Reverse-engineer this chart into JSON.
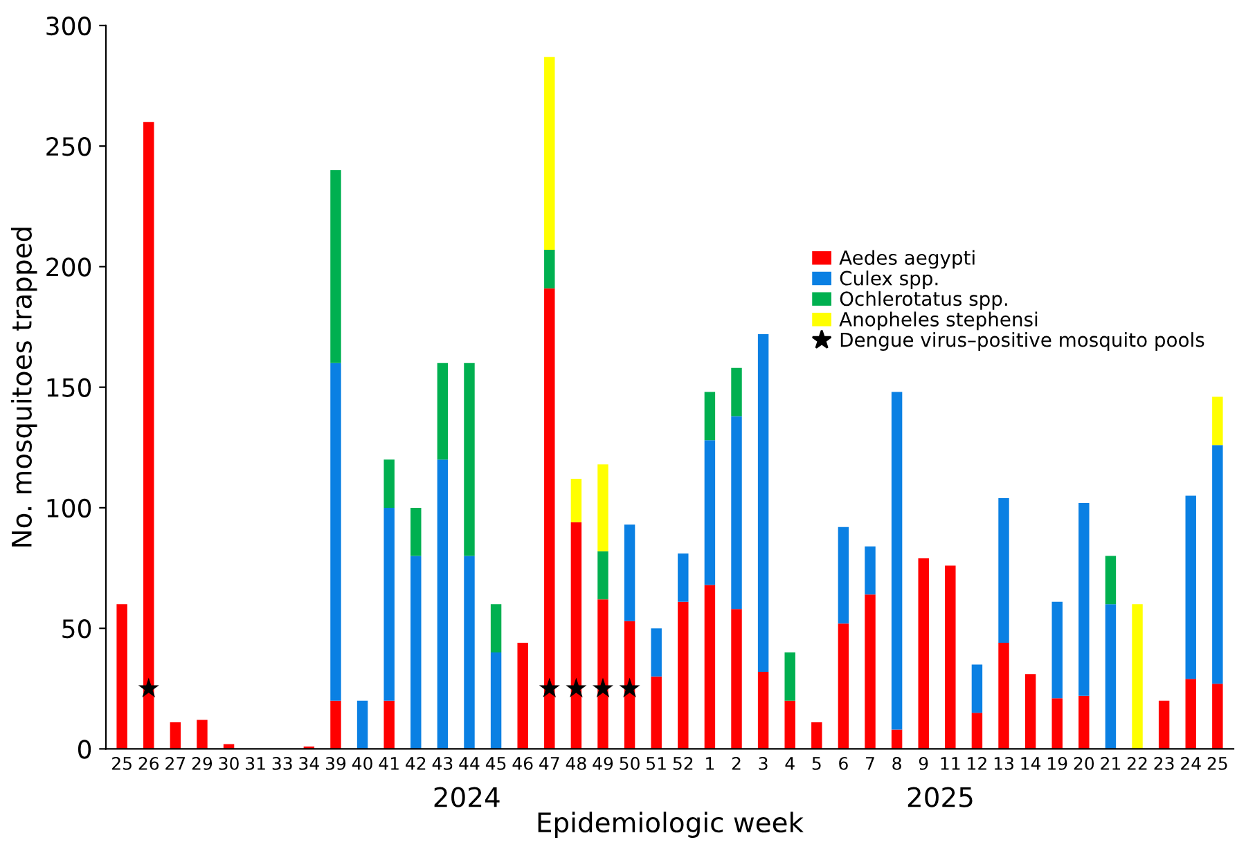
{
  "chart_data": {
    "type": "bar",
    "stacked": true,
    "xlabel": "Epidemiologic week",
    "ylabel": "No. mosquitoes trapped",
    "categories": [
      "25",
      "26",
      "27",
      "29",
      "30",
      "31",
      "33",
      "34",
      "39",
      "40",
      "41",
      "42",
      "43",
      "44",
      "45",
      "46",
      "47",
      "48",
      "49",
      "50",
      "51",
      "52",
      "1",
      "2",
      "3",
      "4",
      "5",
      "6",
      "7",
      "8",
      "9",
      "11",
      "12",
      "13",
      "14",
      "19",
      "20",
      "21",
      "22",
      "23",
      "24",
      "25"
    ],
    "series": [
      {
        "name": "Aedes aegypti",
        "color": "#ff0000",
        "values": [
          60,
          260,
          11,
          12,
          2,
          0,
          0,
          1,
          20,
          0,
          20,
          0,
          0,
          0,
          0,
          44,
          191,
          94,
          62,
          53,
          30,
          61,
          68,
          58,
          32,
          20,
          11,
          52,
          64,
          8,
          79,
          76,
          15,
          44,
          31,
          21,
          22,
          0,
          0,
          20,
          29,
          27
        ]
      },
      {
        "name": "Culex spp.",
        "color": "#0a80e3",
        "values": [
          0,
          0,
          0,
          0,
          0,
          0,
          0,
          0,
          140,
          20,
          80,
          80,
          120,
          80,
          40,
          0,
          0,
          0,
          0,
          40,
          20,
          20,
          60,
          80,
          140,
          0,
          0,
          40,
          20,
          140,
          0,
          0,
          20,
          60,
          0,
          40,
          80,
          60,
          0,
          0,
          76,
          99
        ]
      },
      {
        "name": "Ochlerotatus spp.",
        "color": "#00b050",
        "values": [
          0,
          0,
          0,
          0,
          0,
          0,
          0,
          0,
          80,
          0,
          20,
          20,
          40,
          80,
          20,
          0,
          16,
          0,
          20,
          0,
          0,
          0,
          20,
          20,
          0,
          20,
          0,
          0,
          0,
          0,
          0,
          0,
          0,
          0,
          0,
          0,
          0,
          20,
          0,
          0,
          0,
          0
        ]
      },
      {
        "name": "Anopheles stephensi",
        "color": "#ffff00",
        "values": [
          0,
          0,
          0,
          0,
          0,
          0,
          0,
          0,
          0,
          0,
          0,
          0,
          0,
          0,
          0,
          0,
          80,
          18,
          36,
          0,
          0,
          0,
          0,
          0,
          0,
          0,
          0,
          0,
          0,
          0,
          0,
          0,
          0,
          0,
          0,
          0,
          0,
          0,
          60,
          0,
          0,
          20
        ]
      },
      {
        "name": "Dengue virus–positive mosquito pools",
        "type": "scatter",
        "marker": "star",
        "color": "#000000",
        "x": [
          "26",
          "47",
          "48",
          "49",
          "50"
        ],
        "values": [
          25,
          25,
          25,
          25,
          25
        ]
      }
    ],
    "ylim": [
      0,
      300
    ],
    "yticks": [
      0,
      50,
      100,
      150,
      200,
      250,
      300
    ],
    "grid": false,
    "legend": "right",
    "annotations": [
      "2024",
      "2025"
    ]
  }
}
